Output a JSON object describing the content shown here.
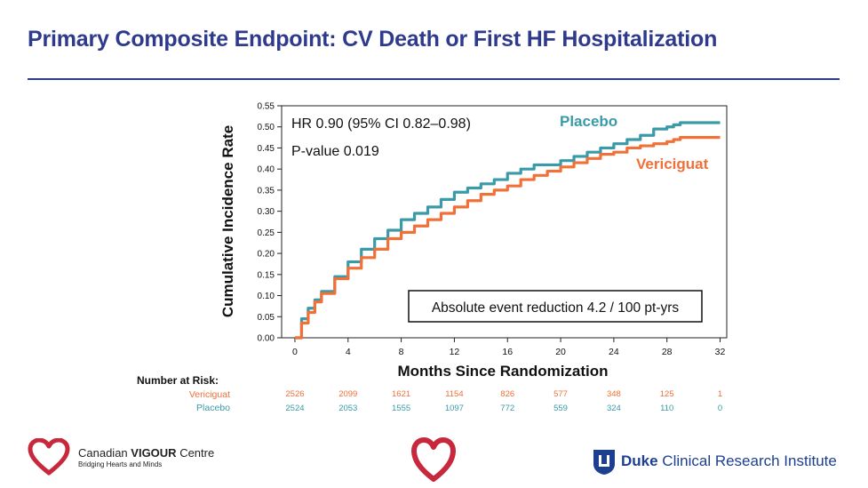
{
  "title": "Primary Composite Endpoint: CV Death or First HF Hospitalization",
  "chart_data": {
    "type": "line",
    "ylabel": "Cumulative Incidence Rate",
    "xlabel": "Months Since Randomization",
    "xlim": [
      -1,
      32.5
    ],
    "ylim": [
      0,
      0.55
    ],
    "x_ticks": [
      "0",
      "4",
      "8",
      "12",
      "16",
      "20",
      "24",
      "28",
      "32"
    ],
    "y_ticks": [
      "0.00",
      "0.05",
      "0.10",
      "0.15",
      "0.20",
      "0.25",
      "0.30",
      "0.35",
      "0.40",
      "0.45",
      "0.50",
      "0.55"
    ],
    "annotations": {
      "hr": "HR 0.90 (95% CI 0.82–0.98)",
      "pvalue": "P-value 0.019",
      "reduction": "Absolute event reduction 4.2 / 100 pt-yrs"
    },
    "series": [
      {
        "name": "Placebo",
        "color": "#3a9aa8",
        "x": [
          0,
          0.5,
          1,
          1.5,
          2,
          3,
          4,
          5,
          6,
          7,
          8,
          9,
          10,
          11,
          12,
          13,
          14,
          15,
          16,
          17,
          18,
          19,
          20,
          21,
          22,
          23,
          24,
          25,
          26,
          27,
          28,
          28.5,
          29,
          30,
          31,
          32
        ],
        "y": [
          0,
          0.045,
          0.07,
          0.09,
          0.11,
          0.145,
          0.18,
          0.21,
          0.235,
          0.255,
          0.28,
          0.295,
          0.31,
          0.328,
          0.345,
          0.355,
          0.365,
          0.375,
          0.39,
          0.4,
          0.41,
          0.41,
          0.42,
          0.43,
          0.44,
          0.45,
          0.46,
          0.47,
          0.48,
          0.495,
          0.5,
          0.505,
          0.51,
          0.51,
          0.51,
          0.51
        ]
      },
      {
        "name": "Vericiguat",
        "color": "#f07038",
        "x": [
          0,
          0.5,
          1,
          1.5,
          2,
          3,
          4,
          5,
          6,
          7,
          8,
          9,
          10,
          11,
          12,
          13,
          14,
          15,
          16,
          17,
          18,
          19,
          20,
          21,
          22,
          23,
          24,
          25,
          26,
          27,
          28,
          28.5,
          29,
          30,
          31,
          32
        ],
        "y": [
          0,
          0.035,
          0.06,
          0.085,
          0.105,
          0.14,
          0.165,
          0.19,
          0.21,
          0.235,
          0.25,
          0.265,
          0.28,
          0.295,
          0.31,
          0.325,
          0.34,
          0.35,
          0.36,
          0.375,
          0.385,
          0.395,
          0.405,
          0.415,
          0.425,
          0.435,
          0.44,
          0.45,
          0.455,
          0.46,
          0.465,
          0.47,
          0.475,
          0.475,
          0.475,
          0.475
        ]
      }
    ]
  },
  "risk_table": {
    "label": "Number at Risk:",
    "rows": [
      {
        "name": "Vericiguat",
        "color": "#f07038",
        "values": [
          "2526",
          "2099",
          "1621",
          "1154",
          "826",
          "577",
          "348",
          "125",
          "1"
        ]
      },
      {
        "name": "Placebo",
        "color": "#3a9aa8",
        "values": [
          "2524",
          "2053",
          "1555",
          "1097",
          "772",
          "559",
          "324",
          "110",
          "0"
        ]
      }
    ]
  },
  "logos": {
    "cvc_name_regular": "Canadian ",
    "cvc_name_bold": "VIGOUR",
    "cvc_name_suffix": " Centre",
    "cvc_tagline": "Bridging Hearts and Minds",
    "duke_bold": "Duke",
    "duke_rest": " Clinical Research Institute"
  },
  "colors": {
    "title": "#2e3a8c",
    "placebo": "#3a9aa8",
    "vericiguat": "#f07038",
    "heart": "#c8283c",
    "duke": "#1d3f8f"
  }
}
